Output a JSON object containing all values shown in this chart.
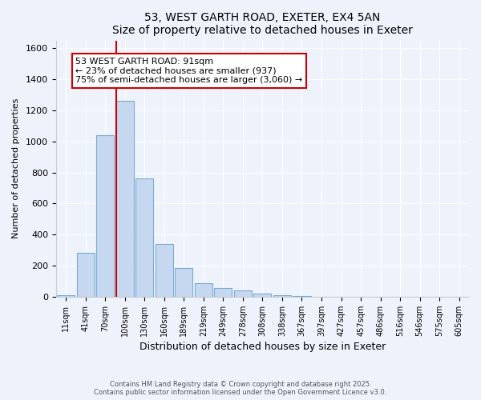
{
  "title_line1": "53, WEST GARTH ROAD, EXETER, EX4 5AN",
  "title_line2": "Size of property relative to detached houses in Exeter",
  "xlabel": "Distribution of detached houses by size in Exeter",
  "ylabel": "Number of detached properties",
  "bar_labels": [
    "11sqm",
    "41sqm",
    "70sqm",
    "100sqm",
    "130sqm",
    "160sqm",
    "189sqm",
    "219sqm",
    "249sqm",
    "278sqm",
    "308sqm",
    "338sqm",
    "367sqm",
    "397sqm",
    "427sqm",
    "457sqm",
    "486sqm",
    "516sqm",
    "546sqm",
    "575sqm",
    "605sqm"
  ],
  "bar_values": [
    10,
    285,
    1040,
    1260,
    760,
    340,
    185,
    85,
    55,
    40,
    22,
    10,
    2,
    0,
    0,
    0,
    0,
    0,
    0,
    0,
    0
  ],
  "bar_color": "#C5D8F0",
  "bar_edge_color": "#7AABD4",
  "vline_color": "#CC0000",
  "annotation_title": "53 WEST GARTH ROAD: 91sqm",
  "annotation_line1": "← 23% of detached houses are smaller (937)",
  "annotation_line2": "75% of semi-detached houses are larger (3,060) →",
  "annotation_box_facecolor": "#ffffff",
  "annotation_box_edgecolor": "#CC0000",
  "ylim": [
    0,
    1650
  ],
  "yticks": [
    0,
    200,
    400,
    600,
    800,
    1000,
    1200,
    1400,
    1600
  ],
  "footer_line1": "Contains HM Land Registry data © Crown copyright and database right 2025.",
  "footer_line2": "Contains public sector information licensed under the Open Government Licence v3.0.",
  "background_color": "#eef2fb",
  "grid_color": "#ffffff",
  "title_fontsize": 10,
  "xlabel_fontsize": 9,
  "ylabel_fontsize": 8,
  "tick_fontsize": 8,
  "annotation_fontsize": 8
}
